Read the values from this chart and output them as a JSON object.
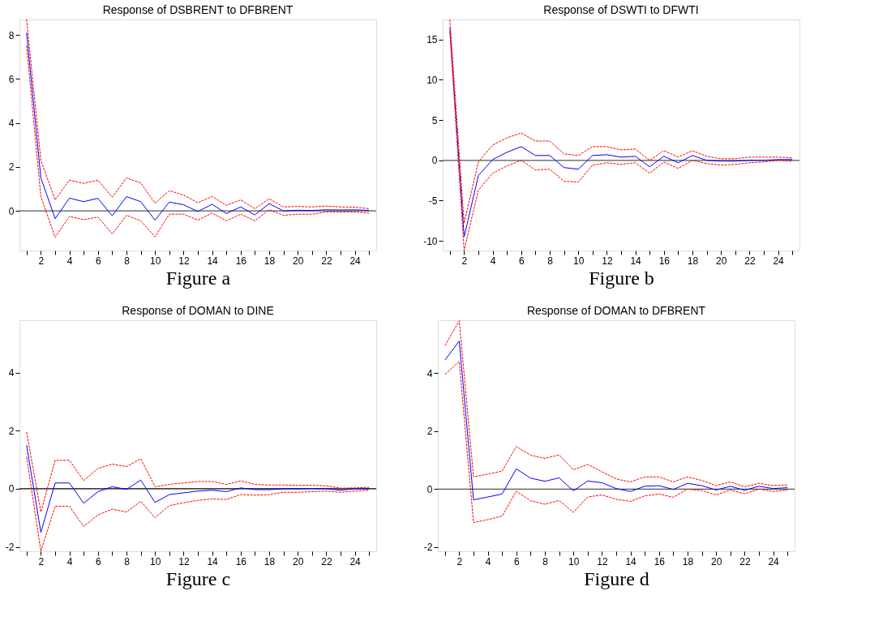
{
  "chart_data": [
    {
      "type": "line",
      "title": "Response of DSBRENT to DFBRENT",
      "xlabel": "Figure a",
      "x": [
        1,
        2,
        3,
        4,
        5,
        6,
        7,
        8,
        9,
        10,
        11,
        12,
        13,
        14,
        15,
        16,
        17,
        18,
        19,
        20,
        21,
        22,
        23,
        24,
        25
      ],
      "xlim": [
        0.5,
        25.5
      ],
      "ylim": [
        -1.8,
        8.7
      ],
      "yticks": [
        0,
        2,
        4,
        6,
        8
      ],
      "xticks": [
        {
          "value": 1,
          "label": null
        },
        2,
        {
          "value": 3,
          "label": null
        },
        4,
        {
          "value": 5,
          "label": null
        },
        6,
        {
          "value": 7,
          "label": null
        },
        8,
        {
          "value": 9,
          "label": null
        },
        10,
        {
          "value": 11,
          "label": null
        },
        12,
        {
          "value": 13,
          "label": null
        },
        14,
        {
          "value": 15,
          "label": null
        },
        16,
        {
          "value": 17,
          "label": null
        },
        18,
        {
          "value": 19,
          "label": null
        },
        20,
        {
          "value": 21,
          "label": null
        },
        22,
        {
          "value": 23,
          "label": null
        },
        24,
        {
          "value": 25,
          "label": null
        }
      ],
      "grid": false,
      "legend": false,
      "ref_lines": [
        {
          "axis": "y",
          "value": 0,
          "color": "#555555"
        }
      ],
      "series": [
        {
          "color": "#0000ff",
          "line_style": "solid",
          "values": [
            8.1,
            1.5,
            -0.35,
            0.58,
            0.42,
            0.57,
            -0.22,
            0.65,
            0.42,
            -0.42,
            0.4,
            0.28,
            -0.03,
            0.3,
            -0.12,
            0.18,
            -0.18,
            0.33,
            0.0,
            0.03,
            0.02,
            0.05,
            0.04,
            0.05,
            0.02
          ]
        },
        {
          "color": "#ff0000",
          "line_style": "dashed",
          "values": [
            8.7,
            2.3,
            0.5,
            1.4,
            1.25,
            1.4,
            0.62,
            1.5,
            1.27,
            0.35,
            0.92,
            0.72,
            0.37,
            0.66,
            0.25,
            0.5,
            0.1,
            0.55,
            0.18,
            0.2,
            0.18,
            0.22,
            0.18,
            0.17,
            0.1
          ]
        },
        {
          "color": "#ff0000",
          "line_style": "dashed",
          "values": [
            7.5,
            0.65,
            -1.2,
            -0.25,
            -0.4,
            -0.28,
            -1.05,
            -0.2,
            -0.45,
            -1.18,
            -0.15,
            -0.15,
            -0.42,
            -0.1,
            -0.45,
            -0.15,
            -0.45,
            0.05,
            -0.2,
            -0.15,
            -0.15,
            -0.05,
            -0.05,
            -0.05,
            -0.1
          ]
        }
      ]
    },
    {
      "type": "line",
      "title": "Response of DSWTI to DFWTI",
      "xlabel": "Figure b",
      "x": [
        1,
        2,
        3,
        4,
        5,
        6,
        7,
        8,
        9,
        10,
        11,
        12,
        13,
        14,
        15,
        16,
        17,
        18,
        19,
        20,
        21,
        22,
        23,
        24,
        25
      ],
      "xlim": [
        0.5,
        25.5
      ],
      "ylim": [
        -11.2,
        17.5
      ],
      "yticks": [
        -10,
        -5,
        0,
        5,
        10,
        15
      ],
      "xticks": [
        {
          "value": 1,
          "label": null
        },
        2,
        {
          "value": 3,
          "label": null
        },
        4,
        {
          "value": 5,
          "label": null
        },
        6,
        {
          "value": 7,
          "label": null
        },
        8,
        {
          "value": 9,
          "label": null
        },
        10,
        {
          "value": 11,
          "label": null
        },
        12,
        {
          "value": 13,
          "label": null
        },
        14,
        {
          "value": 15,
          "label": null
        },
        16,
        {
          "value": 17,
          "label": null
        },
        18,
        {
          "value": 19,
          "label": null
        },
        20,
        {
          "value": 21,
          "label": null
        },
        22,
        {
          "value": 23,
          "label": null
        },
        24,
        {
          "value": 25,
          "label": null
        }
      ],
      "grid": false,
      "legend": false,
      "ref_lines": [
        {
          "axis": "y",
          "value": 0,
          "color": "#555555"
        }
      ],
      "series": [
        {
          "color": "#0000ff",
          "line_style": "solid",
          "values": [
            16.5,
            -9.5,
            -1.9,
            0.1,
            1.0,
            1.7,
            0.6,
            0.6,
            -0.9,
            -1.1,
            0.6,
            0.7,
            0.4,
            0.5,
            -0.8,
            0.5,
            -0.3,
            0.6,
            0.0,
            -0.1,
            -0.1,
            0.0,
            0.0,
            0.1,
            0.1
          ]
        },
        {
          "color": "#ff0000",
          "line_style": "dashed",
          "values": [
            17.5,
            -7.8,
            -0.2,
            1.9,
            2.8,
            3.4,
            2.4,
            2.4,
            0.8,
            0.6,
            1.7,
            1.7,
            1.3,
            1.4,
            0.0,
            1.2,
            0.4,
            1.2,
            0.5,
            0.2,
            0.2,
            0.4,
            0.4,
            0.4,
            0.3
          ]
        },
        {
          "color": "#ff0000",
          "line_style": "dashed",
          "values": [
            16.0,
            -11.2,
            -3.7,
            -1.6,
            -0.7,
            0.0,
            -1.2,
            -1.1,
            -2.6,
            -2.7,
            -0.6,
            -0.3,
            -0.5,
            -0.3,
            -1.6,
            -0.2,
            -1.0,
            0.0,
            -0.4,
            -0.6,
            -0.5,
            -0.3,
            -0.2,
            0.0,
            -0.1
          ]
        }
      ]
    },
    {
      "type": "line",
      "title": "Response of DOMAN to DINE",
      "xlabel": "Figure c",
      "x": [
        1,
        2,
        3,
        4,
        5,
        6,
        7,
        8,
        9,
        10,
        11,
        12,
        13,
        14,
        15,
        16,
        17,
        18,
        19,
        20,
        21,
        22,
        23,
        24,
        25
      ],
      "xlim": [
        0.5,
        25.5
      ],
      "ylim": [
        -2.15,
        5.8
      ],
      "yticks": [
        -2,
        0,
        2,
        4
      ],
      "xticks": [
        {
          "value": 1,
          "label": null
        },
        2,
        {
          "value": 3,
          "label": null
        },
        4,
        {
          "value": 5,
          "label": null
        },
        6,
        {
          "value": 7,
          "label": null
        },
        8,
        {
          "value": 9,
          "label": null
        },
        10,
        {
          "value": 11,
          "label": null
        },
        12,
        {
          "value": 13,
          "label": null
        },
        14,
        {
          "value": 15,
          "label": null
        },
        16,
        {
          "value": 17,
          "label": null
        },
        18,
        {
          "value": 19,
          "label": null
        },
        20,
        {
          "value": 21,
          "label": null
        },
        22,
        {
          "value": 23,
          "label": null
        },
        24,
        {
          "value": 25,
          "label": null
        }
      ],
      "grid": false,
      "legend": false,
      "ref_lines": [
        {
          "axis": "y",
          "value": 0,
          "color": "#000000"
        }
      ],
      "series": [
        {
          "color": "#0000ff",
          "line_style": "solid",
          "values": [
            1.5,
            -1.5,
            0.2,
            0.2,
            -0.5,
            -0.1,
            0.07,
            -0.02,
            0.3,
            -0.47,
            -0.2,
            -0.14,
            -0.08,
            -0.05,
            -0.1,
            0.03,
            -0.03,
            -0.03,
            0.0,
            0.0,
            0.01,
            0.0,
            -0.05,
            0.0,
            0.0
          ]
        },
        {
          "color": "#ff0000",
          "line_style": "dashed",
          "values": [
            1.95,
            -0.8,
            0.98,
            0.98,
            0.28,
            0.7,
            0.85,
            0.76,
            1.03,
            0.07,
            0.15,
            0.2,
            0.25,
            0.25,
            0.15,
            0.27,
            0.15,
            0.13,
            0.13,
            0.12,
            0.12,
            0.1,
            0.02,
            0.03,
            0.05
          ]
        },
        {
          "color": "#ff0000",
          "line_style": "dashed",
          "values": [
            1.1,
            -2.15,
            -0.6,
            -0.6,
            -1.3,
            -0.9,
            -0.7,
            -0.8,
            -0.43,
            -1.0,
            -0.58,
            -0.48,
            -0.4,
            -0.35,
            -0.37,
            -0.2,
            -0.22,
            -0.2,
            -0.12,
            -0.12,
            -0.1,
            -0.08,
            -0.12,
            -0.08,
            -0.05
          ]
        }
      ]
    },
    {
      "type": "line",
      "title": "Response of DOMAN to DFBRENT",
      "xlabel": "Figure d",
      "x": [
        1,
        2,
        3,
        4,
        5,
        6,
        7,
        8,
        9,
        10,
        11,
        12,
        13,
        14,
        15,
        16,
        17,
        18,
        19,
        20,
        21,
        22,
        23,
        24,
        25
      ],
      "xlim": [
        0.5,
        25.5
      ],
      "ylim": [
        -2.14,
        5.82
      ],
      "yticks": [
        -2,
        0,
        2,
        4
      ],
      "xticks": [
        {
          "value": 1,
          "label": null
        },
        2,
        {
          "value": 3,
          "label": null
        },
        4,
        {
          "value": 5,
          "label": null
        },
        6,
        {
          "value": 7,
          "label": null
        },
        8,
        {
          "value": 9,
          "label": null
        },
        10,
        {
          "value": 11,
          "label": null
        },
        12,
        {
          "value": 13,
          "label": null
        },
        14,
        {
          "value": 15,
          "label": null
        },
        16,
        {
          "value": 17,
          "label": null
        },
        18,
        {
          "value": 19,
          "label": null
        },
        20,
        {
          "value": 21,
          "label": null
        },
        22,
        {
          "value": 23,
          "label": null
        },
        24,
        {
          "value": 25,
          "label": null
        }
      ],
      "grid": false,
      "legend": false,
      "ref_lines": [
        {
          "axis": "y",
          "value": 0,
          "color": "#555555"
        }
      ],
      "series": [
        {
          "color": "#0000ff",
          "line_style": "solid",
          "values": [
            4.45,
            5.1,
            -0.37,
            -0.27,
            -0.17,
            0.7,
            0.38,
            0.27,
            0.39,
            -0.06,
            0.28,
            0.22,
            0.02,
            -0.08,
            0.1,
            0.12,
            -0.01,
            0.2,
            0.12,
            -0.03,
            0.1,
            -0.04,
            0.1,
            0.02,
            0.05
          ]
        },
        {
          "color": "#ff0000",
          "line_style": "dashed",
          "values": [
            4.95,
            5.8,
            0.42,
            0.52,
            0.62,
            1.47,
            1.17,
            1.06,
            1.18,
            0.67,
            0.85,
            0.6,
            0.35,
            0.25,
            0.42,
            0.42,
            0.25,
            0.42,
            0.3,
            0.12,
            0.25,
            0.08,
            0.2,
            0.12,
            0.14
          ]
        },
        {
          "color": "#ff0000",
          "line_style": "dashed",
          "values": [
            3.95,
            4.4,
            -1.15,
            -1.05,
            -0.93,
            -0.07,
            -0.4,
            -0.52,
            -0.39,
            -0.8,
            -0.27,
            -0.2,
            -0.35,
            -0.42,
            -0.23,
            -0.17,
            -0.28,
            0.0,
            -0.05,
            -0.2,
            -0.03,
            -0.16,
            0.0,
            -0.08,
            -0.03
          ]
        }
      ]
    }
  ]
}
